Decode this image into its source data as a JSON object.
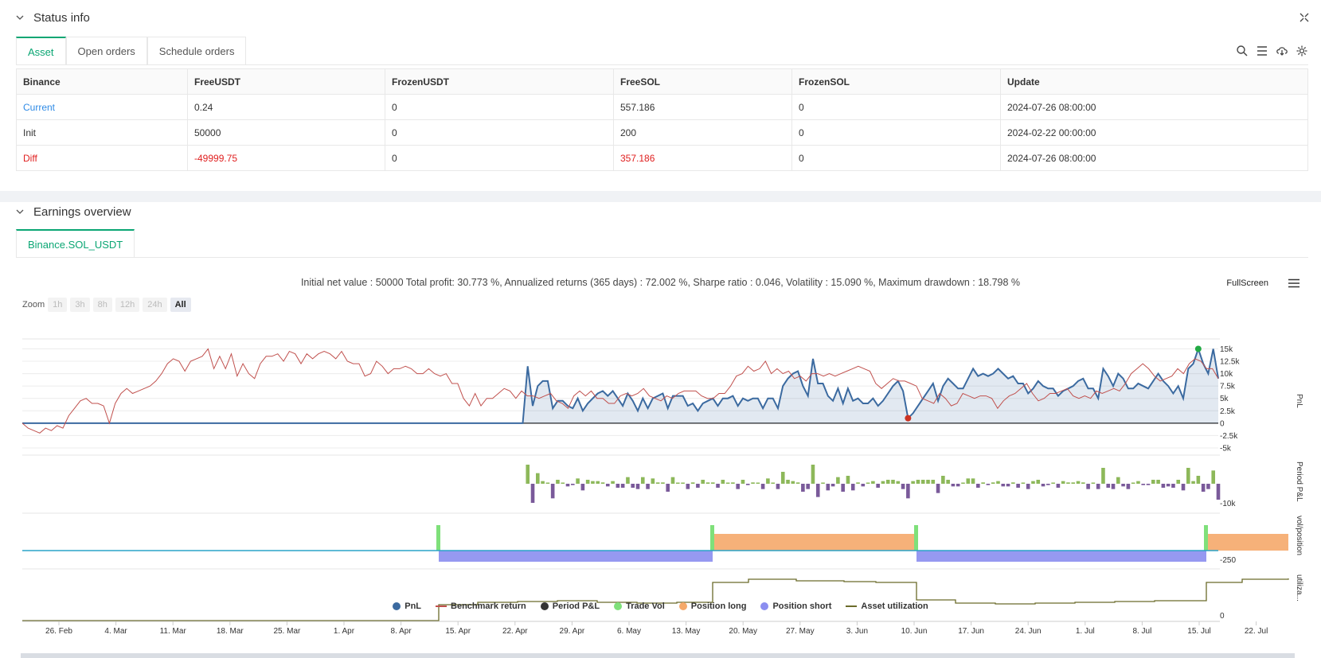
{
  "status": {
    "title": "Status info",
    "tabs": [
      "Asset",
      "Open orders",
      "Schedule orders"
    ],
    "columns": [
      "Binance",
      "FreeUSDT",
      "FrozenUSDT",
      "FreeSOL",
      "FrozenSOL",
      "Update"
    ],
    "rows": [
      [
        "Current",
        "0.24",
        "0",
        "557.186",
        "0",
        "2024-07-26 08:00:00"
      ],
      [
        "Init",
        "50000",
        "0",
        "200",
        "0",
        "2024-02-22 00:00:00"
      ],
      [
        "Diff",
        "-49999.75",
        "0",
        "357.186",
        "0",
        "2024-07-26 08:00:00"
      ]
    ]
  },
  "earnings": {
    "title": "Earnings overview",
    "tab": "Binance.SOL_USDT",
    "summary": "Initial net value : 50000 Total profit: 30.773 %, Annualized returns (365 days) : 72.002 %, Sharpe ratio : 0.046, Volatility : 15.090 %, Maximum drawdown : 18.798 %",
    "zoom_label": "Zoom",
    "zoom_options": [
      "1h",
      "3h",
      "8h",
      "12h",
      "24h",
      "All"
    ],
    "fullscreen_label": "FullScreen"
  },
  "chart_data": {
    "type": "line",
    "x_ticks": [
      "26. Feb",
      "4. Mar",
      "11. Mar",
      "18. Mar",
      "25. Mar",
      "1. Apr",
      "8. Apr",
      "15. Apr",
      "22. Apr",
      "29. Apr",
      "6. May",
      "13. May",
      "20. May",
      "27. May",
      "3. Jun",
      "10. Jun",
      "17. Jun",
      "24. Jun",
      "1. Jul",
      "8. Jul",
      "15. Jul",
      "22. Jul"
    ],
    "pnl_axis": {
      "ticks": [
        "15k",
        "12.5k",
        "10k",
        "7.5k",
        "5k",
        "2.5k",
        "0",
        "-2.5k",
        "-5k"
      ],
      "ylabel": "PnL"
    },
    "period_axis": {
      "ticks": [
        "-10k"
      ],
      "ylabel": "Period P&L"
    },
    "position_axis": {
      "ticks": [
        "-250"
      ],
      "ylabel": "vol/position"
    },
    "util_axis": {
      "ticks": [
        "0"
      ],
      "ylabel": "utiliza..."
    },
    "pnl_series": [
      0,
      0,
      0,
      0,
      0,
      0,
      0,
      0,
      0,
      0,
      0,
      0,
      0,
      0,
      0,
      0,
      0,
      0,
      0,
      0,
      0,
      0,
      0,
      0,
      0,
      0,
      0,
      0,
      0,
      0,
      0,
      0,
      0,
      0,
      0,
      0,
      0,
      0,
      0,
      0,
      0,
      0,
      0,
      0,
      0,
      0,
      0,
      0,
      0,
      0,
      0,
      0,
      0,
      0,
      0,
      0,
      0,
      0,
      0,
      0,
      0,
      0,
      0,
      0,
      0,
      0,
      0,
      0,
      0,
      0,
      0,
      0,
      0,
      0,
      0,
      0,
      0,
      0,
      0,
      0,
      0,
      0,
      0,
      0,
      0,
      0,
      0,
      0,
      0,
      0,
      0,
      0,
      0,
      0,
      0,
      0,
      0,
      0,
      0,
      0,
      0,
      11500,
      3500,
      7500,
      8500,
      8500,
      3000,
      4500,
      4500,
      3500,
      3000,
      5000,
      2500,
      4000,
      5000,
      6000,
      6500,
      5500,
      6500,
      5000,
      3500,
      6000,
      4500,
      2500,
      5000,
      3000,
      5000,
      5500,
      6000,
      3000,
      5500,
      5500,
      5500,
      3500,
      4000,
      2500,
      4000,
      4500,
      5000,
      3500,
      5000,
      5000,
      5500,
      3500,
      5000,
      4500,
      5000,
      5000,
      3000,
      5000,
      5000,
      3000,
      7500,
      9000,
      10000,
      10500,
      7500,
      5500,
      13000,
      8000,
      8000,
      5500,
      4500,
      7000,
      4000,
      7000,
      4500,
      5000,
      4000,
      4000,
      5000,
      3500,
      4500,
      6000,
      7500,
      8500,
      6500,
      1000,
      2000,
      3500,
      5000,
      6500,
      8000,
      4500,
      7500,
      9000,
      8000,
      7000,
      7000,
      9000,
      11000,
      9500,
      10000,
      9500,
      10000,
      11000,
      10000,
      9000,
      9500,
      8000,
      8000,
      6000,
      7000,
      8500,
      7500,
      7000,
      7000,
      5500,
      6500,
      7000,
      7500,
      8500,
      9000,
      7000,
      7000,
      5000,
      11000,
      9500,
      7500,
      10000,
      9000,
      7000,
      7000,
      8000,
      7500,
      7000,
      8500,
      10000,
      8500,
      7500,
      6000,
      7500,
      5000,
      11000,
      12000,
      15000,
      12000,
      10000,
      15000,
      9000
    ],
    "benchmark_series": [
      0,
      -1000,
      -1500,
      -2000,
      -1000,
      -1500,
      -500,
      -1000,
      1500,
      3000,
      4500,
      5000,
      4000,
      4000,
      3500,
      0,
      4000,
      6000,
      7000,
      6000,
      6500,
      7000,
      7500,
      8500,
      10000,
      12000,
      13000,
      12500,
      10500,
      12500,
      13000,
      13500,
      15000,
      11000,
      13500,
      11000,
      14000,
      9500,
      12000,
      10000,
      9000,
      12000,
      13500,
      13500,
      14000,
      12500,
      14500,
      14000,
      12000,
      14000,
      13000,
      14000,
      14500,
      14000,
      13000,
      14500,
      12500,
      12000,
      12000,
      9500,
      10000,
      12500,
      11500,
      10000,
      11000,
      11000,
      11500,
      11000,
      10000,
      10000,
      11000,
      10000,
      9500,
      10000,
      8000,
      8000,
      5000,
      3500,
      6000,
      3500,
      5000,
      5000,
      6000,
      7000,
      6500,
      5000,
      6500,
      5500,
      5500,
      5000,
      5500,
      6000,
      4500,
      4000,
      3000,
      5500,
      6500,
      5500,
      6500,
      5000,
      5000,
      4000,
      4000,
      5500,
      6000,
      5500,
      6000,
      7000,
      5500,
      5000,
      4500,
      5500,
      5000,
      6000,
      6500,
      6500,
      6500,
      5500,
      5000,
      5000,
      6000,
      6000,
      7500,
      9500,
      10000,
      11500,
      10500,
      11000,
      12500,
      10000,
      11000,
      10000,
      10500,
      9000,
      9500,
      8500,
      10000,
      10000,
      9500,
      10000,
      9500,
      10000,
      10500,
      11000,
      11500,
      11000,
      10500,
      8000,
      7000,
      8000,
      9000,
      8500,
      8500,
      8000,
      7500,
      5000,
      4500,
      4000,
      6000,
      5000,
      3500,
      4000,
      6000,
      5500,
      5000,
      5500,
      5500,
      5000,
      3000,
      4500,
      5500,
      6000,
      7000,
      8000,
      6000,
      4500,
      5000,
      6000,
      6000,
      6500,
      7000,
      5500,
      5000,
      5500,
      5000,
      6500,
      6000,
      6500,
      7000,
      6500,
      8000,
      10000,
      11000,
      12000,
      11000,
      9500,
      8500,
      9000,
      9500,
      11000,
      10000,
      12000,
      13000,
      12500,
      11000,
      11000,
      9000
    ],
    "position_segments": [
      {
        "type": "short",
        "from": "14. Apr",
        "to": "17. May"
      },
      {
        "type": "long",
        "from": "17. May",
        "to": "11. Jun"
      },
      {
        "type": "short",
        "from": "11. Jun",
        "to": "16. Jul"
      },
      {
        "type": "long",
        "from": "16. Jul",
        "to": "26. Jul"
      }
    ],
    "legend": [
      {
        "label": "PnL",
        "color": "#3b6aa0",
        "shape": "dot"
      },
      {
        "label": "Benchmark return",
        "color": "#c0504d",
        "shape": "line"
      },
      {
        "label": "Period P&L",
        "color": "#333333",
        "shape": "dot"
      },
      {
        "label": "Trade Vol",
        "color": "#7fe07a",
        "shape": "dot"
      },
      {
        "label": "Position long",
        "color": "#f5a96a",
        "shape": "dot"
      },
      {
        "label": "Position short",
        "color": "#8b8ef0",
        "shape": "dot"
      },
      {
        "label": "Asset utilization",
        "color": "#6b6b2a",
        "shape": "line"
      }
    ]
  }
}
